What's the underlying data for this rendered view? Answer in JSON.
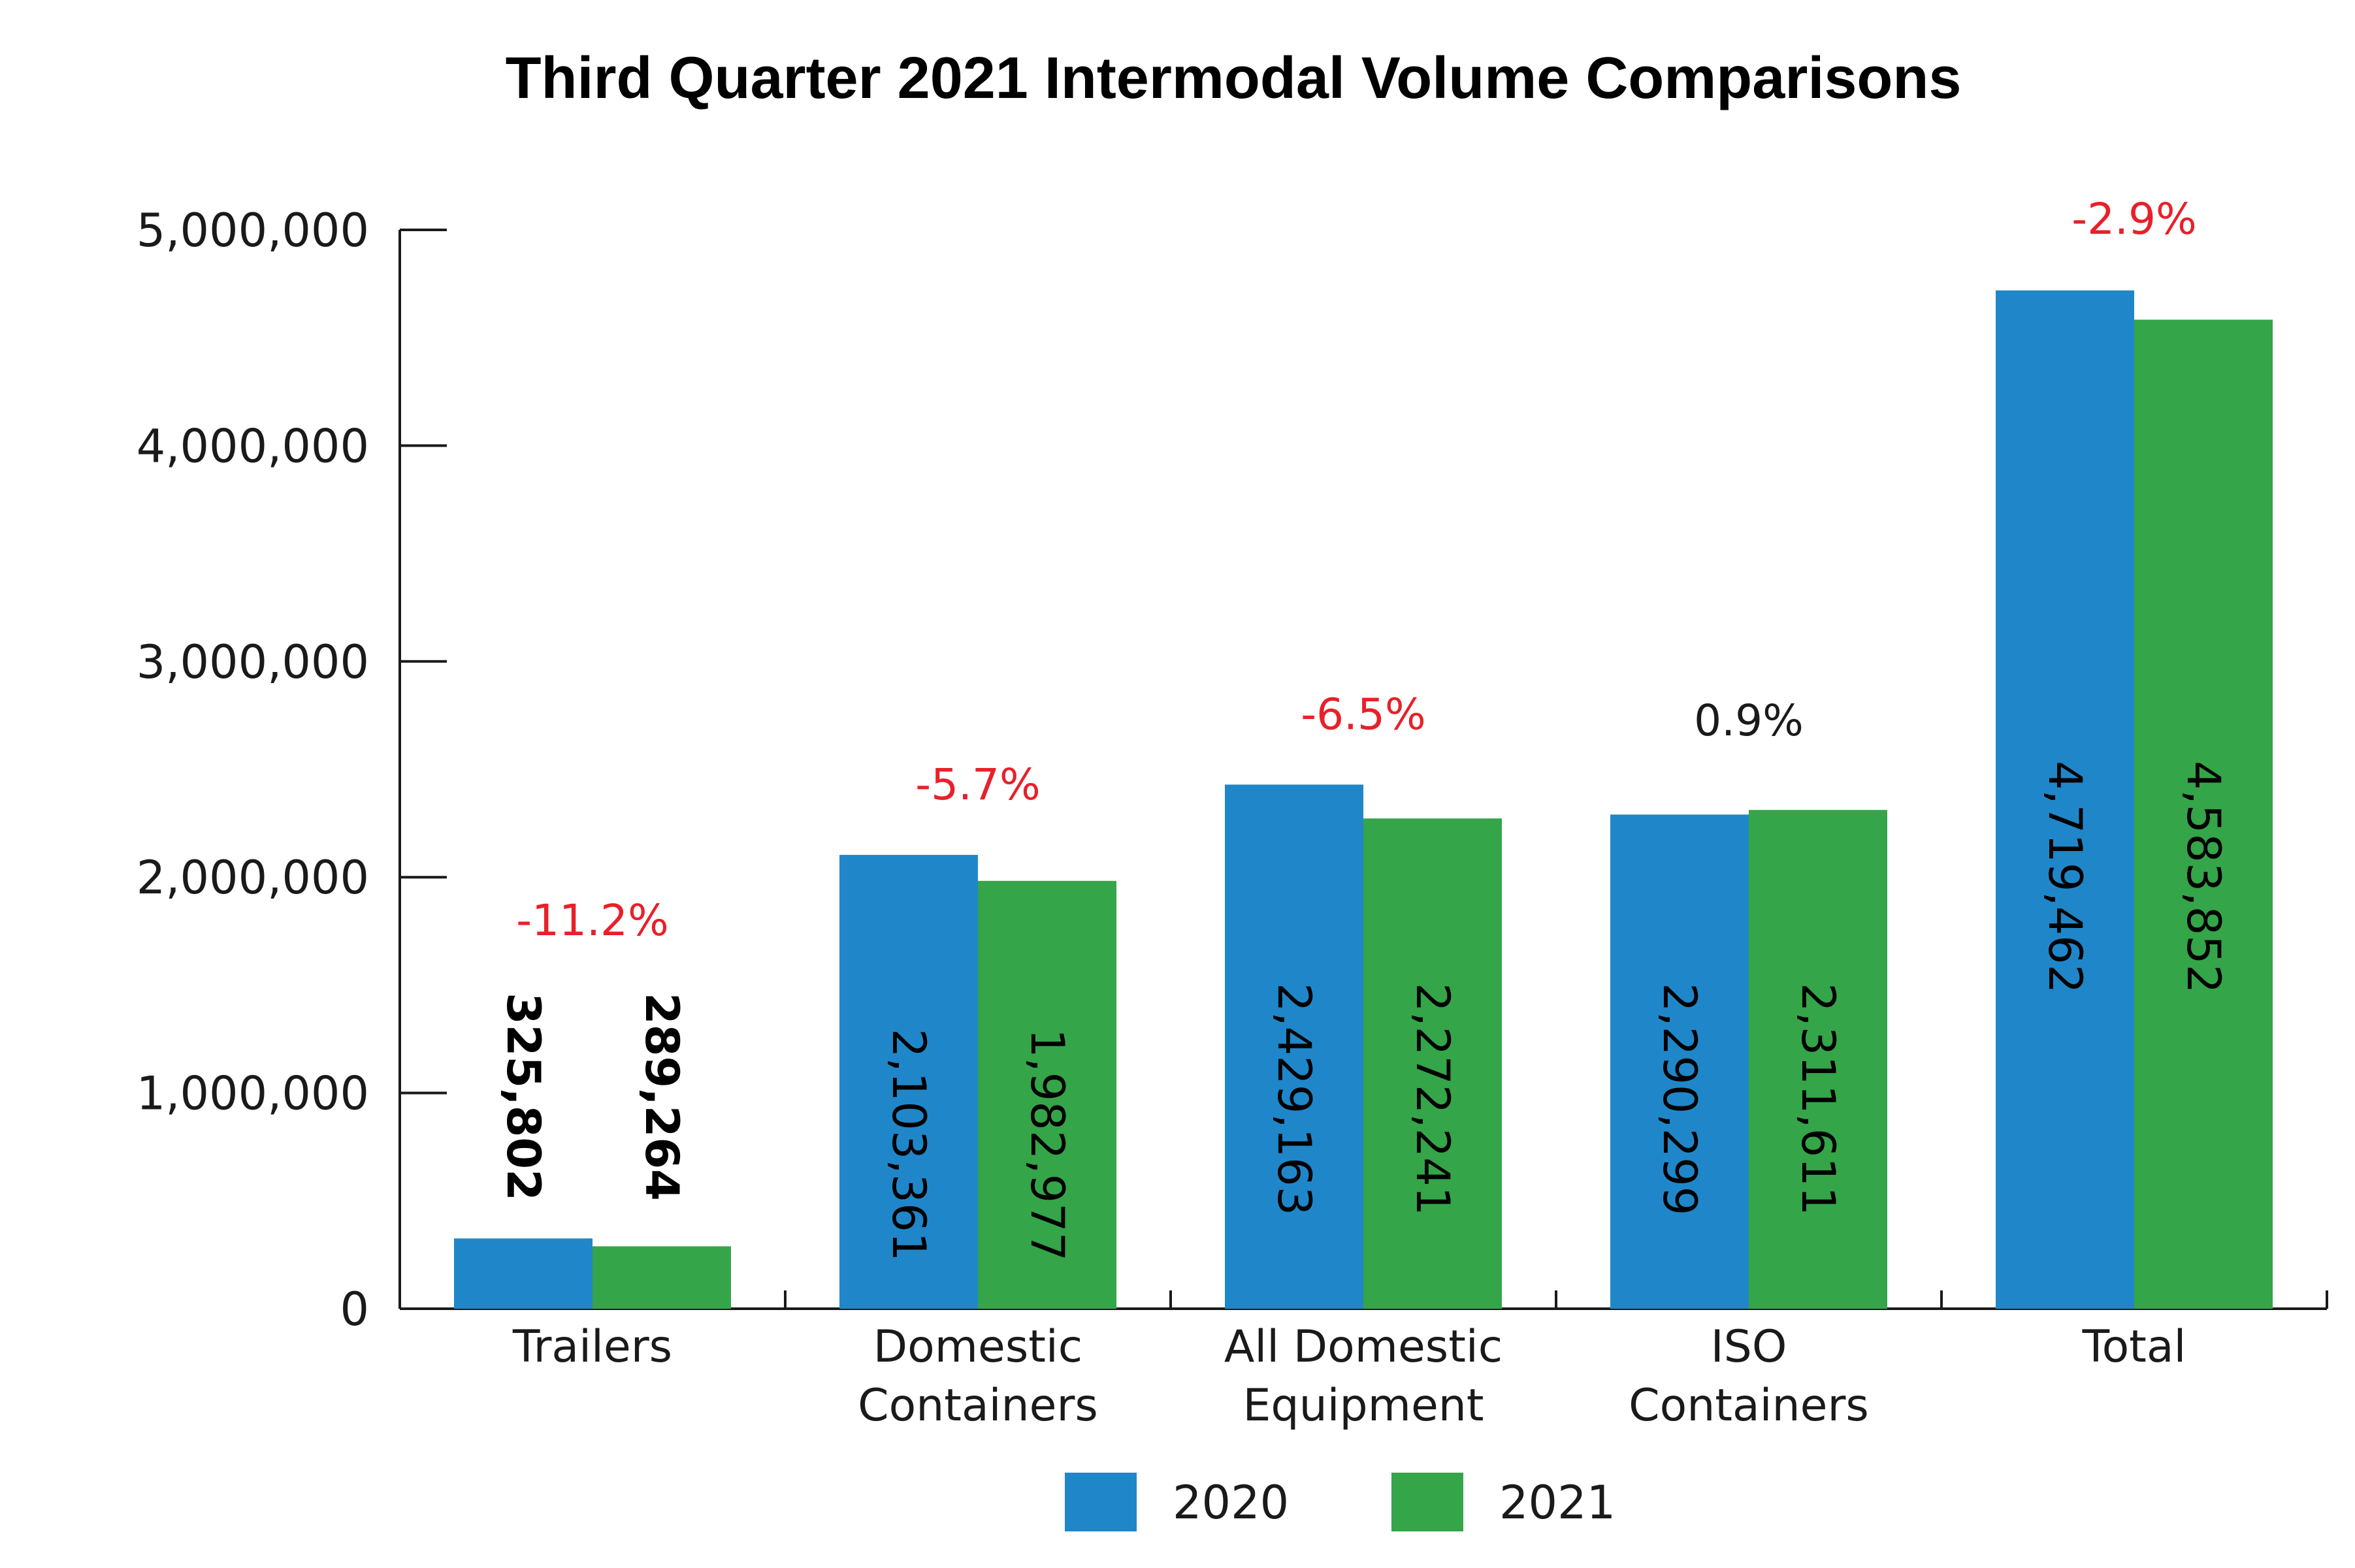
{
  "chart_data": {
    "type": "bar",
    "title": "Third Quarter 2021 Intermodal Volume Comparisons",
    "categories": [
      [
        "Trailers"
      ],
      [
        "Domestic",
        "Containers"
      ],
      [
        "All Domestic",
        "Equipment"
      ],
      [
        "ISO",
        "Containers"
      ],
      [
        "Total"
      ]
    ],
    "series": [
      {
        "name": "2020",
        "color": "#1f87c9",
        "values": [
          325802,
          2103361,
          2429163,
          2290299,
          4719462
        ],
        "labels": [
          "325,802",
          "2,103,361",
          "2,429,163",
          "2,290,299",
          "4,719,462"
        ]
      },
      {
        "name": "2021",
        "color": "#34a548",
        "values": [
          289264,
          1982977,
          2272241,
          2311611,
          4583852
        ],
        "labels": [
          "289,264",
          "1,982,977",
          "2,272,241",
          "2,311,611",
          "4,583,852"
        ]
      }
    ],
    "changes": [
      {
        "text": "-11.2%",
        "color": "#e8202a"
      },
      {
        "text": "-5.7%",
        "color": "#e8202a"
      },
      {
        "text": "-6.5%",
        "color": "#e8202a"
      },
      {
        "text": "0.9%",
        "color": "#1a1a1a"
      },
      {
        "text": "-2.9%",
        "color": "#e8202a"
      }
    ],
    "yticks": [
      {
        "value": 0,
        "label": "0"
      },
      {
        "value": 1000000,
        "label": "1,000,000"
      },
      {
        "value": 2000000,
        "label": "2,000,000"
      },
      {
        "value": 3000000,
        "label": "3,000,000"
      },
      {
        "value": 4000000,
        "label": "4,000,000"
      },
      {
        "value": 5000000,
        "label": "5,000,000"
      }
    ],
    "ylim": [
      0,
      5000000
    ],
    "xlabel": "",
    "ylabel": "",
    "grid": false,
    "legend_position": "bottom-center"
  }
}
